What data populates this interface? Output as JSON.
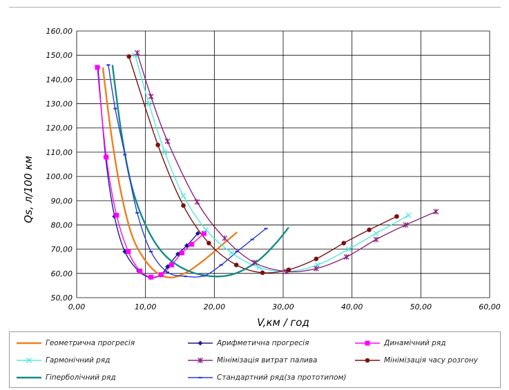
{
  "chart_data": {
    "type": "line",
    "xlabel": "V,км / год",
    "ylabel": "Qs, л/100 км",
    "xlim": [
      0,
      60
    ],
    "ylim": [
      50,
      160
    ],
    "x_ticks": [
      "0,00",
      "10,00",
      "20,00",
      "30,00",
      "40,00",
      "50,00",
      "60,00"
    ],
    "y_ticks": [
      "50,00",
      "60,00",
      "70,00",
      "80,00",
      "90,00",
      "100,00",
      "110,00",
      "120,00",
      "130,00",
      "140,00",
      "150,00",
      "160,00"
    ],
    "grid": true,
    "legend_position": "bottom",
    "series": [
      {
        "name": "Геометрична прогресія",
        "color": "#f07d1e",
        "marker": "none",
        "x": [
          3.8,
          5.0,
          6.4,
          8.0,
          9.8,
          11.8,
          13.8,
          16.0,
          18.5,
          21.0,
          23.3
        ],
        "y": [
          145,
          118,
          94,
          76,
          66,
          60,
          58.3,
          60.5,
          65.5,
          71.5,
          77
        ]
      },
      {
        "name": "Арифметична прогресія",
        "color": "#1a1a8a",
        "marker": "diamond",
        "x": [
          3.1,
          4.2,
          5.5,
          7.0,
          9.0,
          10.7,
          12.2,
          13.2,
          14.7,
          16.0,
          17.6
        ],
        "y": [
          145,
          108,
          83.5,
          69,
          61,
          58.3,
          59.3,
          62.8,
          68,
          71.5,
          76.5
        ]
      },
      {
        "name": "Динамічний ряд",
        "color": "#ff00ff",
        "marker": "square",
        "x": [
          3.0,
          4.3,
          5.8,
          7.5,
          9.2,
          10.8,
          12.3,
          13.8,
          15.3,
          16.7,
          18.5
        ],
        "y": [
          145,
          108,
          84,
          69,
          61,
          58.5,
          59.5,
          63.5,
          68.5,
          72,
          76.5
        ]
      },
      {
        "name": "Гармонічний ряд",
        "color": "#55e8e0",
        "marker": "x",
        "x": [
          8.5,
          10.5,
          12.8,
          15.5,
          18.8,
          22.5,
          26.5,
          30.5,
          35.0,
          39.5,
          43.5,
          48.2
        ],
        "y": [
          150,
          130,
          110,
          92,
          78,
          68.5,
          62.5,
          60.8,
          63.5,
          70,
          76.5,
          84
        ]
      },
      {
        "name": "Мінімізація витрат палива",
        "color": "#8a2080",
        "marker": "star",
        "x": [
          8.8,
          10.8,
          13.2,
          17.5,
          21.5,
          25.8,
          30.5,
          34.8,
          39.2,
          43.5,
          47.8,
          52.2
        ],
        "y": [
          151,
          133,
          114.5,
          89.5,
          74.5,
          64.5,
          60.8,
          62,
          66.8,
          74,
          80,
          85.5
        ]
      },
      {
        "name": "Мінімізація часу розгону",
        "color": "#7a1010",
        "marker": "circle",
        "x": [
          7.6,
          11.8,
          15.5,
          19.2,
          23.2,
          27.0,
          30.8,
          34.8,
          38.8,
          42.5,
          46.5
        ],
        "y": [
          149.5,
          113,
          88,
          72.5,
          63.5,
          60.3,
          61.5,
          66,
          72.5,
          78,
          83.5
        ]
      },
      {
        "name": "Гіперболічний ряд",
        "color": "#138a8a",
        "marker": "none",
        "x": [
          5.2,
          6.5,
          8.0,
          10.0,
          12.5,
          15.5,
          19.0,
          22.5,
          26.0,
          28.8,
          30.8
        ],
        "y": [
          146,
          118,
          96,
          80,
          68.5,
          62,
          59,
          59.5,
          64.5,
          72,
          79
        ]
      },
      {
        "name": "Стандартний ряд(за прототипом)",
        "color": "#2b3ad8",
        "marker": "dash",
        "x": [
          4.6,
          5.6,
          7.0,
          8.8,
          10.8,
          13.2,
          15.8,
          18.5,
          21.0,
          23.3,
          25.5,
          27.5
        ],
        "y": [
          146,
          128,
          109,
          85,
          69,
          60.5,
          58.8,
          59,
          63.5,
          69,
          74,
          78.5
        ]
      }
    ]
  }
}
